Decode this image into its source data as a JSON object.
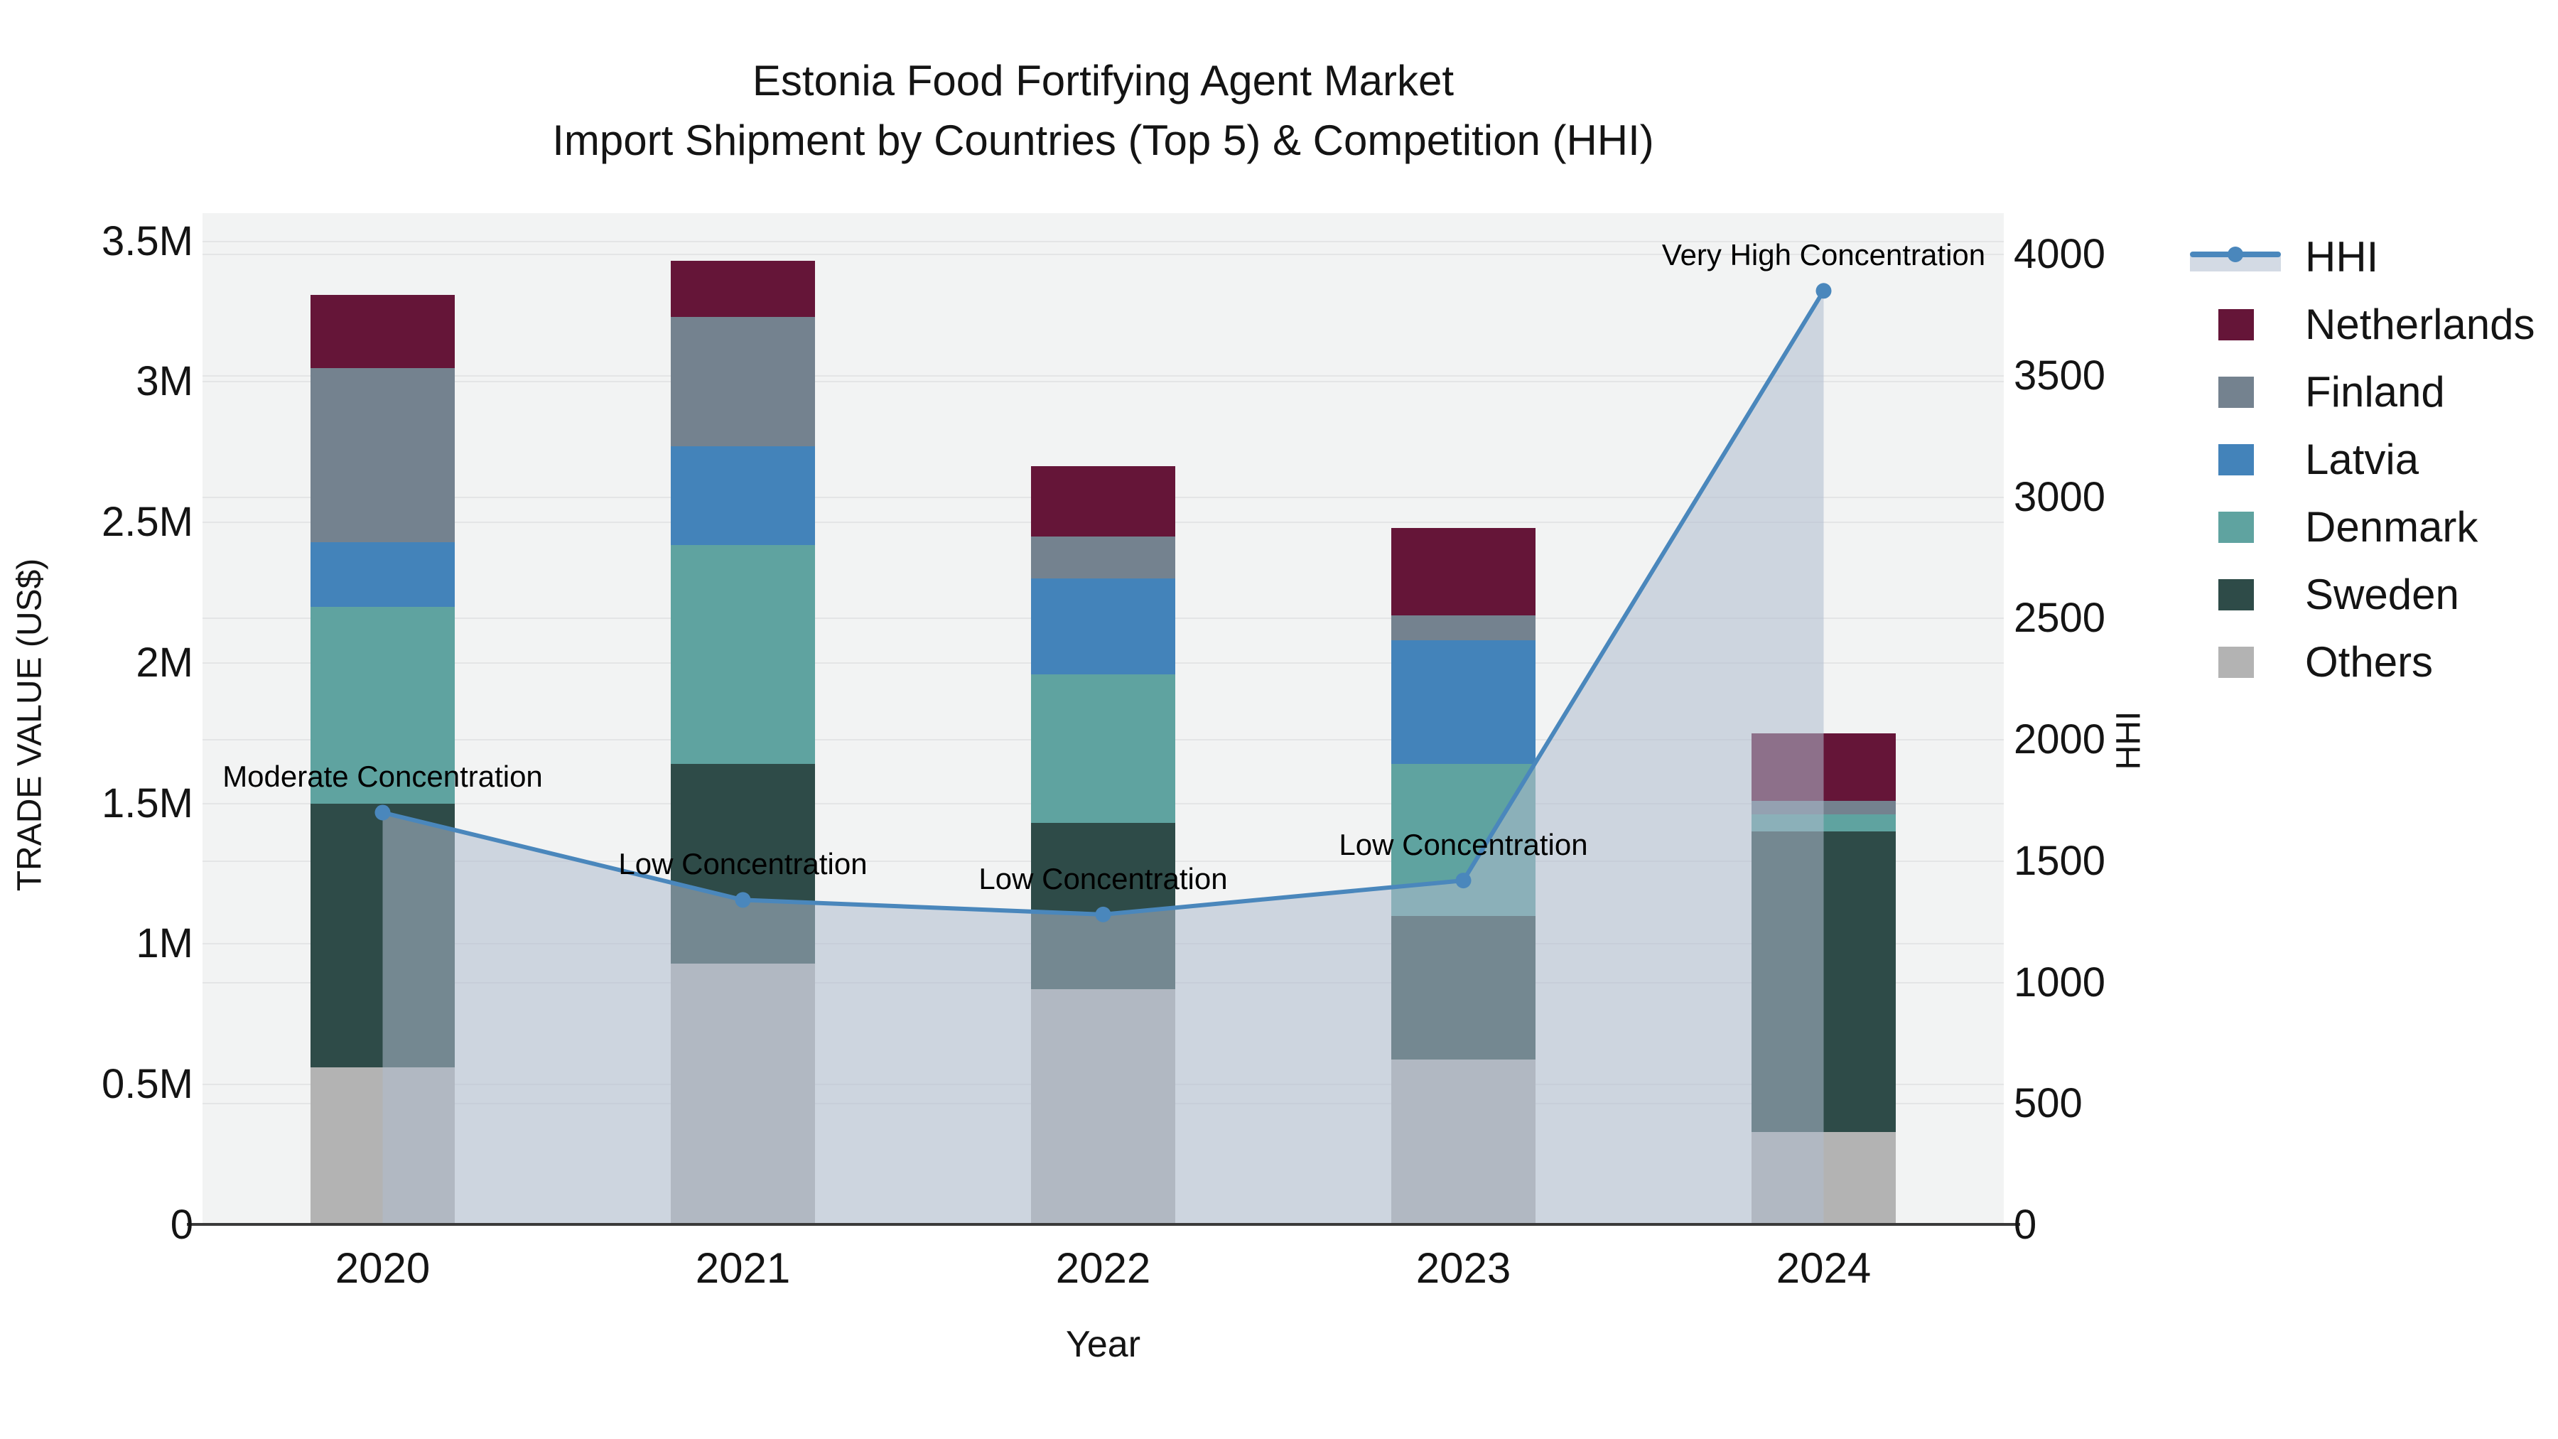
{
  "chart_data": {
    "type": "stacked_bar_with_line",
    "title": "Estonia Food Fortifying Agent Market",
    "subtitle": "Import Shipment by Countries (Top 5) & Competition (HHI)",
    "xlabel": "Year",
    "ylabel_left": "TRADE VALUE (US$)",
    "ylabel_right": "HHI",
    "categories": [
      "2020",
      "2021",
      "2022",
      "2023",
      "2024"
    ],
    "bar_value_unit": "million US$",
    "series": [
      {
        "name": "Others",
        "color": "#B3B3B3",
        "values": [
          0.56,
          0.93,
          0.84,
          0.59,
          0.33
        ]
      },
      {
        "name": "Sweden",
        "color": "#2E4B48",
        "values": [
          0.94,
          0.71,
          0.59,
          0.51,
          1.07
        ]
      },
      {
        "name": "Denmark",
        "color": "#5FA3A0",
        "values": [
          0.7,
          0.78,
          0.53,
          0.54,
          0.06
        ]
      },
      {
        "name": "Latvia",
        "color": "#4383BA",
        "values": [
          0.23,
          0.35,
          0.34,
          0.44,
          0.0
        ]
      },
      {
        "name": "Finland",
        "color": "#74828F",
        "values": [
          0.62,
          0.46,
          0.15,
          0.09,
          0.05
        ]
      },
      {
        "name": "Netherlands",
        "color": "#651538",
        "values": [
          0.26,
          0.2,
          0.25,
          0.31,
          0.24
        ]
      }
    ],
    "bar_totals": [
      3.31,
      3.43,
      2.7,
      2.48,
      1.75
    ],
    "line_series": {
      "name": "HHI",
      "axis": "right",
      "color": "#4A87BC",
      "fill_color": "#AFBCCE",
      "fill_opacity": 0.55,
      "values": [
        1700,
        1340,
        1280,
        1420,
        3850
      ]
    },
    "annotations": [
      {
        "category": "2020",
        "text": "Moderate Concentration"
      },
      {
        "category": "2021",
        "text": "Low Concentration"
      },
      {
        "category": "2022",
        "text": "Low Concentration"
      },
      {
        "category": "2023",
        "text": "Low Concentration"
      },
      {
        "category": "2024",
        "text": "Very High Concentration"
      }
    ],
    "y_left_ticks": [
      {
        "label": "0",
        "value": 0
      },
      {
        "label": "0.5M",
        "value": 0.5
      },
      {
        "label": "1M",
        "value": 1
      },
      {
        "label": "1.5M",
        "value": 1.5
      },
      {
        "label": "2M",
        "value": 2
      },
      {
        "label": "2.5M",
        "value": 2.5
      },
      {
        "label": "3M",
        "value": 3
      },
      {
        "label": "3.5M",
        "value": 3.5
      }
    ],
    "y_right_ticks": [
      {
        "label": "0",
        "value": 0
      },
      {
        "label": "500",
        "value": 500
      },
      {
        "label": "1000",
        "value": 1000
      },
      {
        "label": "1500",
        "value": 1500
      },
      {
        "label": "2000",
        "value": 2000
      },
      {
        "label": "2500",
        "value": 2500
      },
      {
        "label": "3000",
        "value": 3000
      },
      {
        "label": "3500",
        "value": 3500
      },
      {
        "label": "4000",
        "value": 4000
      }
    ],
    "ylim_left_millions": [
      0,
      3.6
    ],
    "ylim_right": [
      0,
      4170
    ],
    "grid": true,
    "legend_position": "right",
    "legend": [
      "HHI",
      "Netherlands",
      "Finland",
      "Latvia",
      "Denmark",
      "Sweden",
      "Others"
    ]
  },
  "style_colors": {
    "plot_bg": "#F2F3F3",
    "gridline": "#E4E5E6",
    "axis_line": "#3A3A3A",
    "text": "#141414"
  }
}
